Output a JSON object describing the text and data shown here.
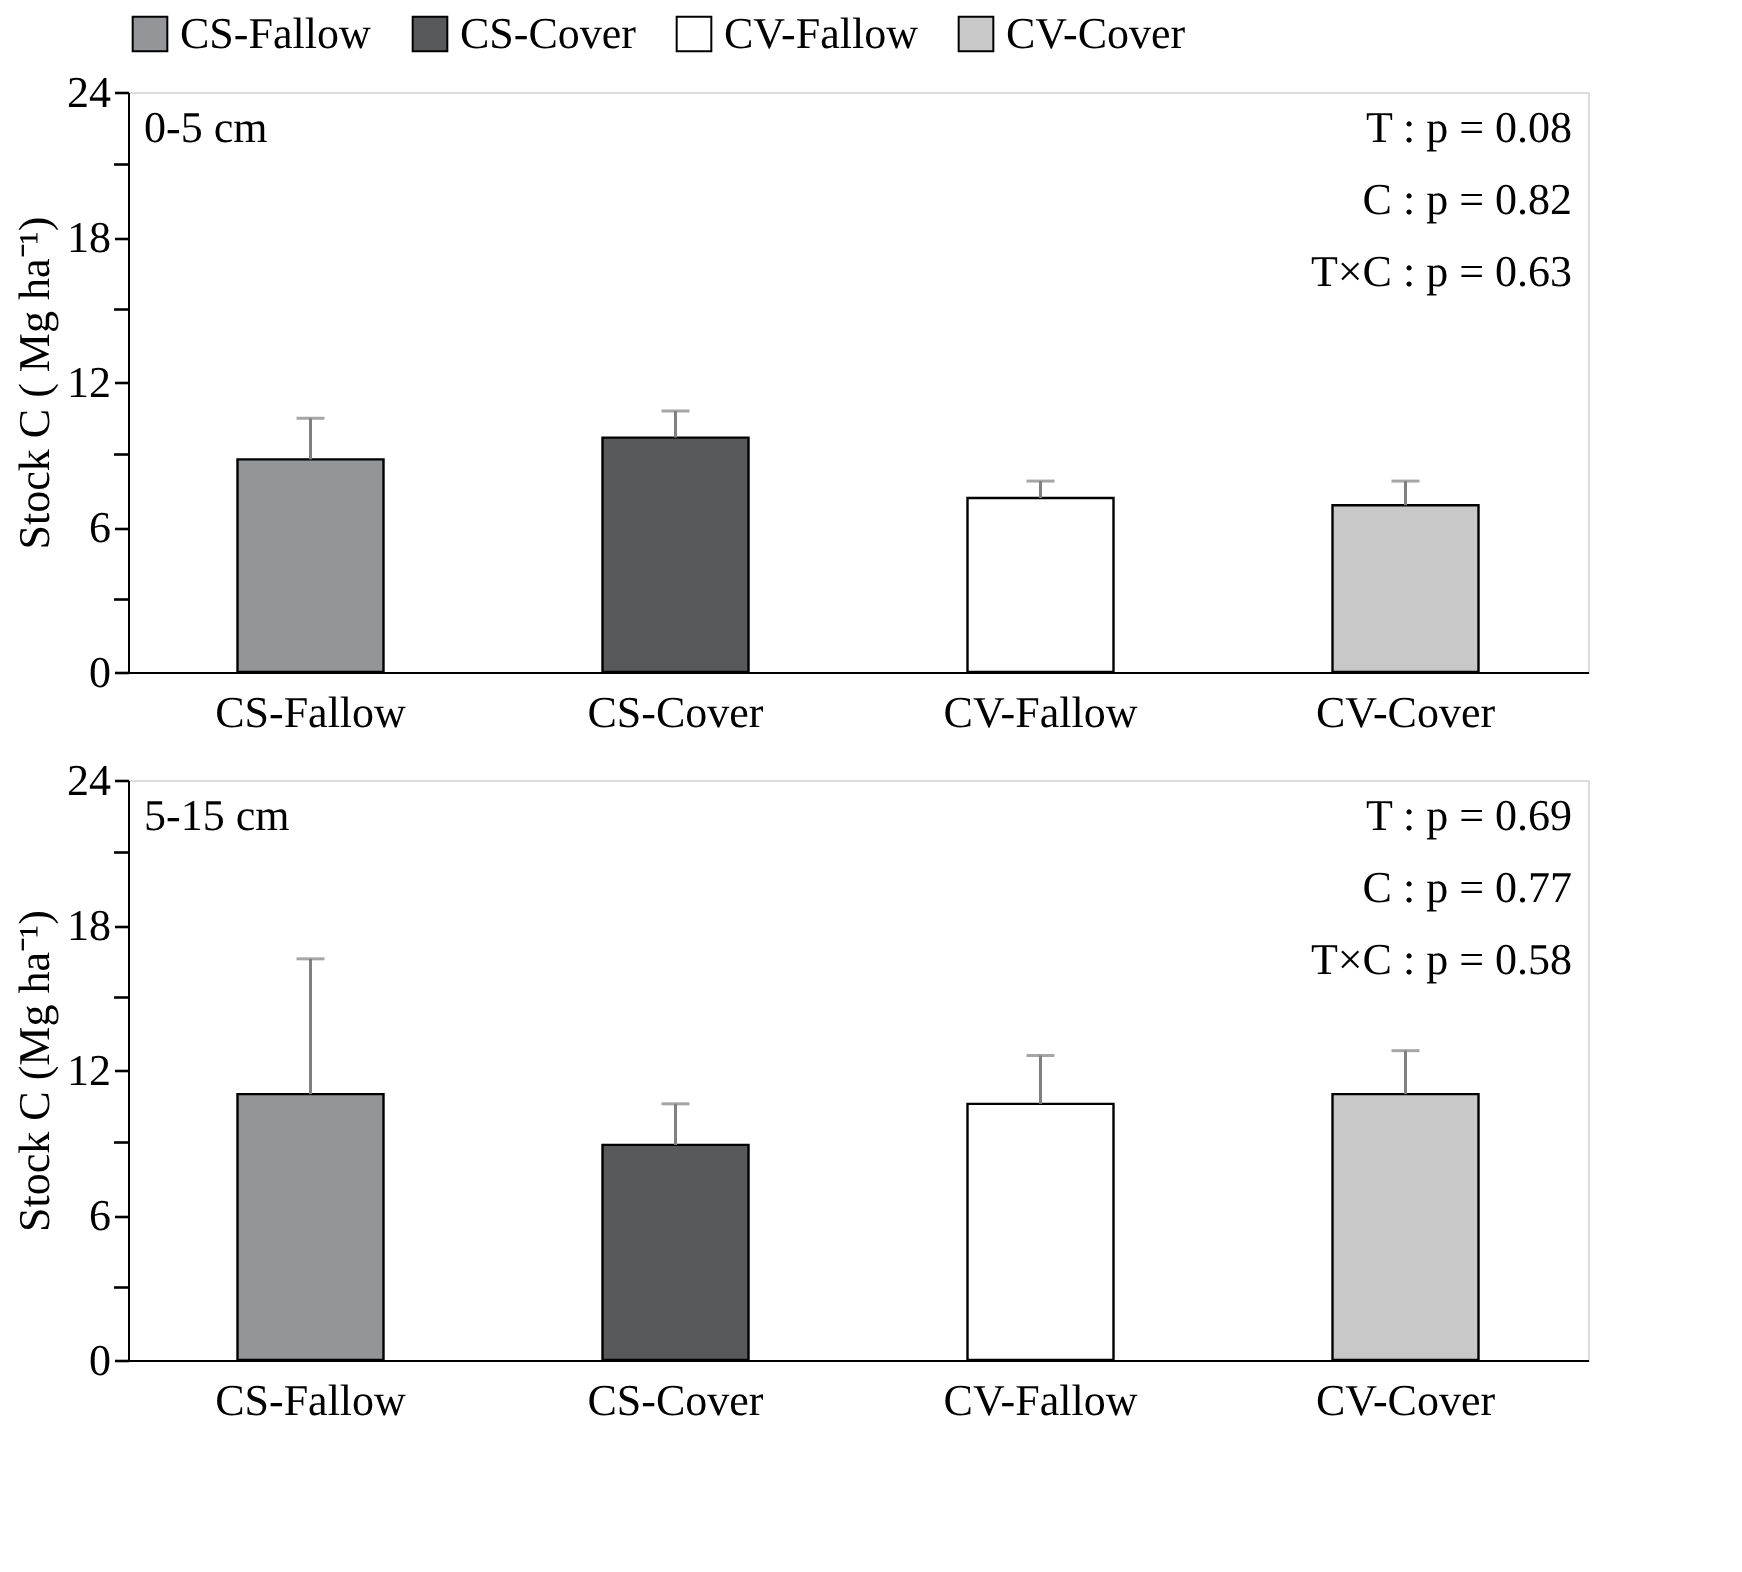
{
  "chart_data": [
    {
      "type": "bar",
      "legend": "top",
      "ylabel": "Stock C ( Mg ha⁻¹)",
      "categories": [
        "CS-Fallow",
        "CS-Cover",
        "CV-Fallow",
        "CV-Cover"
      ],
      "series": [
        {
          "name": "CS-Fallow",
          "color": "#939598",
          "values": [
            8.8,
            null,
            null,
            null
          ],
          "errors": [
            [
              8.8,
              10.5
            ],
            null,
            null,
            null
          ]
        },
        {
          "name": "CS-Cover",
          "color": "#58595b",
          "values": [
            null,
            9.7,
            null,
            null
          ],
          "errors": [
            null,
            [
              9.7,
              10.8
            ],
            null,
            null
          ]
        },
        {
          "name": "CV-Fallow",
          "color": "#ffffff",
          "values": [
            null,
            null,
            7.2,
            null
          ],
          "errors": [
            null,
            null,
            [
              7.2,
              7.9
            ],
            null
          ]
        },
        {
          "name": "CV-Cover",
          "color": "#c8c8c8",
          "values": [
            null,
            null,
            null,
            6.9
          ],
          "errors": [
            null,
            null,
            null,
            [
              6.9,
              7.9
            ]
          ]
        }
      ],
      "ylim": [
        0,
        24
      ],
      "yticks": [
        0,
        {
          "value": 3,
          "label": null
        },
        6,
        {
          "value": 9,
          "label": null
        },
        12,
        {
          "value": 15,
          "label": null
        },
        18,
        {
          "value": 21,
          "label": null
        },
        24
      ],
      "annotations": [
        "0-5 cm",
        "T : p = 0.08",
        "C : p = 0.82",
        "T×C : p = 0.63"
      ]
    },
    {
      "type": "bar",
      "ylabel": "Stock C (Mg ha⁻¹)",
      "categories": [
        "CS-Fallow",
        "CS-Cover",
        "CV-Fallow",
        "CV-Cover"
      ],
      "series": [
        {
          "color": "#939598",
          "values": [
            11.0,
            null,
            null,
            null
          ],
          "errors": [
            [
              11.0,
              16.6
            ],
            null,
            null,
            null
          ]
        },
        {
          "color": "#58595b",
          "values": [
            null,
            8.9,
            null,
            null
          ],
          "errors": [
            null,
            [
              8.9,
              10.6
            ],
            null,
            null
          ]
        },
        {
          "color": "#ffffff",
          "values": [
            null,
            null,
            10.6,
            null
          ],
          "errors": [
            null,
            null,
            [
              10.6,
              12.6
            ],
            null
          ]
        },
        {
          "color": "#c8c8c8",
          "values": [
            null,
            null,
            null,
            11.0
          ],
          "errors": [
            null,
            null,
            null,
            [
              11.0,
              12.8
            ]
          ]
        }
      ],
      "ylim": [
        0,
        24
      ],
      "yticks": [
        0,
        {
          "value": 3,
          "label": null
        },
        6,
        {
          "value": 9,
          "label": null
        },
        12,
        {
          "value": 15,
          "label": null
        },
        18,
        {
          "value": 21,
          "label": null
        },
        24
      ],
      "annotations": [
        "5-15 cm",
        "T : p = 0.69",
        "C : p = 0.77",
        "T×C : p = 0.58"
      ]
    }
  ]
}
